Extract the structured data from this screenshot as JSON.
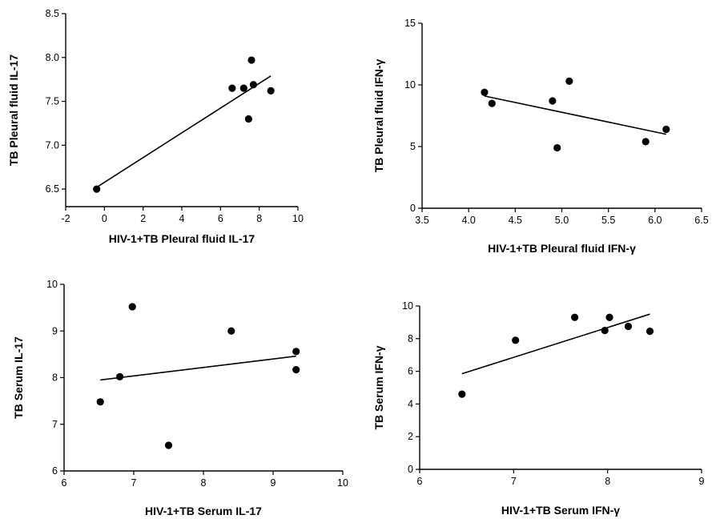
{
  "chart_data": [
    {
      "type": "scatter",
      "xlabel": "HIV-1+TB Pleural fluid IL-17",
      "ylabel": "TB Pleural fluid IL-17",
      "xlim": [
        -2,
        10
      ],
      "ylim": [
        6.3,
        8.5
      ],
      "xticks": [
        "-2",
        "0",
        "2",
        "4",
        "6",
        "8",
        "10"
      ],
      "yticks": [
        "6.5",
        "7.0",
        "7.5",
        "8.0",
        "8.5"
      ],
      "xtick_values": [
        -2,
        0,
        2,
        4,
        6,
        8,
        10
      ],
      "ytick_values": [
        6.5,
        7.0,
        7.5,
        8.0,
        8.5
      ],
      "points": [
        {
          "x": -0.4,
          "y": 6.5
        },
        {
          "x": 6.6,
          "y": 7.65
        },
        {
          "x": 7.2,
          "y": 7.65
        },
        {
          "x": 7.45,
          "y": 7.3
        },
        {
          "x": 7.6,
          "y": 7.97
        },
        {
          "x": 7.7,
          "y": 7.69
        },
        {
          "x": 8.6,
          "y": 7.62
        }
      ],
      "fit_line": [
        {
          "x": -0.4,
          "y": 6.52
        },
        {
          "x": 8.6,
          "y": 7.79
        }
      ]
    },
    {
      "type": "scatter",
      "xlabel": "HIV-1+TB Pleural fluid IFN-γ",
      "ylabel": "TB Pleural fluid IFN-γ",
      "xlim": [
        3.5,
        6.5
      ],
      "ylim": [
        0,
        15
      ],
      "xticks": [
        "3.5",
        "4.0",
        "4.5",
        "5.0",
        "5.5",
        "6.0",
        "6.5"
      ],
      "yticks": [
        "0",
        "5",
        "10",
        "15"
      ],
      "xtick_values": [
        3.5,
        4.0,
        4.5,
        5.0,
        5.5,
        6.0,
        6.5
      ],
      "ytick_values": [
        0,
        5,
        10,
        15
      ],
      "points": [
        {
          "x": 4.17,
          "y": 9.4
        },
        {
          "x": 4.25,
          "y": 8.5
        },
        {
          "x": 4.9,
          "y": 8.7
        },
        {
          "x": 4.95,
          "y": 4.9
        },
        {
          "x": 5.08,
          "y": 10.3
        },
        {
          "x": 5.9,
          "y": 5.4
        },
        {
          "x": 6.12,
          "y": 6.4
        }
      ],
      "fit_line": [
        {
          "x": 4.17,
          "y": 9.1
        },
        {
          "x": 6.12,
          "y": 6.0
        }
      ]
    },
    {
      "type": "scatter",
      "xlabel": "HIV-1+TB Serum IL-17",
      "ylabel": "TB Serum IL-17",
      "xlim": [
        6,
        10
      ],
      "ylim": [
        6,
        10
      ],
      "xticks": [
        "6",
        "7",
        "8",
        "9",
        "10"
      ],
      "yticks": [
        "6",
        "7",
        "8",
        "9",
        "10"
      ],
      "xtick_values": [
        6,
        7,
        8,
        9,
        10
      ],
      "ytick_values": [
        6,
        7,
        8,
        9,
        10
      ],
      "points": [
        {
          "x": 6.52,
          "y": 7.48
        },
        {
          "x": 6.8,
          "y": 8.02
        },
        {
          "x": 6.98,
          "y": 9.52
        },
        {
          "x": 7.5,
          "y": 6.55
        },
        {
          "x": 8.4,
          "y": 9.0
        },
        {
          "x": 9.33,
          "y": 8.56
        },
        {
          "x": 9.33,
          "y": 8.17
        }
      ],
      "fit_line": [
        {
          "x": 6.52,
          "y": 7.95
        },
        {
          "x": 9.33,
          "y": 8.46
        }
      ]
    },
    {
      "type": "scatter",
      "xlabel": "HIV-1+TB Serum IFN-γ",
      "ylabel": "TB Serum IFN-γ",
      "xlim": [
        6,
        9
      ],
      "ylim": [
        0,
        10
      ],
      "xticks": [
        "6",
        "7",
        "8",
        "9"
      ],
      "yticks": [
        "0",
        "2",
        "4",
        "6",
        "8",
        "10"
      ],
      "xtick_values": [
        6,
        7,
        8,
        9
      ],
      "ytick_values": [
        0,
        2,
        4,
        6,
        8,
        10
      ],
      "points": [
        {
          "x": 6.45,
          "y": 4.6
        },
        {
          "x": 7.02,
          "y": 7.9
        },
        {
          "x": 7.65,
          "y": 9.3
        },
        {
          "x": 7.97,
          "y": 8.5
        },
        {
          "x": 8.02,
          "y": 9.3
        },
        {
          "x": 8.22,
          "y": 8.75
        },
        {
          "x": 8.45,
          "y": 8.45
        }
      ],
      "fit_line": [
        {
          "x": 6.45,
          "y": 5.85
        },
        {
          "x": 8.45,
          "y": 9.5
        }
      ]
    }
  ]
}
